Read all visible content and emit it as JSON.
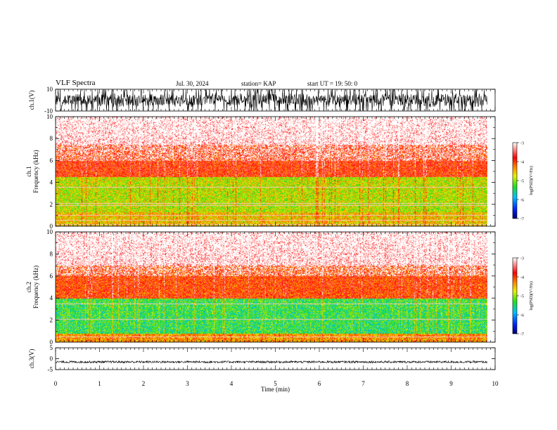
{
  "header": {
    "title": "VLF Spectra",
    "date": "Jul. 30, 2024",
    "station": "station= KAP",
    "start": "start  UT =   19: 50: 0"
  },
  "chart_data": [
    {
      "type": "line",
      "name": "ch1-waveform",
      "ylabel": "ch.1(V)",
      "ylim": [
        -10,
        10
      ],
      "y_ticks": [
        10,
        -10
      ],
      "xlim": [
        0,
        10
      ],
      "x_end": 9.82,
      "center": 0,
      "amplitude_range": [
        -7,
        7
      ]
    },
    {
      "type": "heatmap",
      "name": "ch1-spectrogram",
      "ylabel": "ch.1\nFrequency  (kHz)",
      "ylim": [
        0,
        10
      ],
      "y_ticks": [
        0,
        2,
        4,
        6,
        8,
        10
      ],
      "xlim": [
        0,
        10
      ],
      "x_end": 9.82,
      "colorbar": {
        "label": "log(PSD)(V²/Hz)",
        "range": [
          -7,
          -3
        ],
        "ticks": [
          -3,
          -4,
          -5,
          -6,
          -7
        ]
      },
      "bands_khz": [
        {
          "from": 0,
          "to": 1.3,
          "level": -4.6
        },
        {
          "from": 1.3,
          "to": 4.5,
          "level": -4.9
        },
        {
          "from": 4.5,
          "to": 7.5,
          "level": -4.0
        },
        {
          "from": 7.5,
          "to": 10,
          "level": -3.4
        }
      ],
      "lines_khz": [
        0.2,
        0.6,
        1.0,
        1.9,
        2.1,
        3.6
      ]
    },
    {
      "type": "heatmap",
      "name": "ch2-spectrogram",
      "ylabel": "ch.2\nFrequency  (kHz)",
      "ylim": [
        0,
        10
      ],
      "y_ticks": [
        0,
        2,
        4,
        6,
        8,
        10
      ],
      "xlim": [
        0,
        10
      ],
      "x_end": 9.82,
      "colorbar": {
        "label": "log(PSD)(V²/Hz)",
        "range": [
          -7,
          -3
        ],
        "ticks": [
          -3,
          -4,
          -5,
          -6,
          -7
        ]
      },
      "bands_khz": [
        {
          "from": 0,
          "to": 0.8,
          "level": -4.4
        },
        {
          "from": 0.8,
          "to": 4.0,
          "level": -5.4
        },
        {
          "from": 4.0,
          "to": 7.0,
          "level": -4.1
        },
        {
          "from": 7.0,
          "to": 10,
          "level": -3.4
        }
      ],
      "lines_khz": [
        0.5,
        2.1,
        3.5
      ]
    },
    {
      "type": "line",
      "name": "ch3-waveform",
      "ylabel": "ch.3(V)",
      "ylim": [
        -5,
        5
      ],
      "y_ticks": [
        5,
        0,
        -5
      ],
      "xlim": [
        0,
        10
      ],
      "x_end": 9.82,
      "center": -1.5,
      "amplitude_range": [
        -0.5,
        0.5
      ],
      "xlabel": "Time  (min)",
      "x_ticks": [
        0,
        1,
        2,
        3,
        4,
        5,
        6,
        7,
        8,
        9,
        10
      ]
    }
  ]
}
